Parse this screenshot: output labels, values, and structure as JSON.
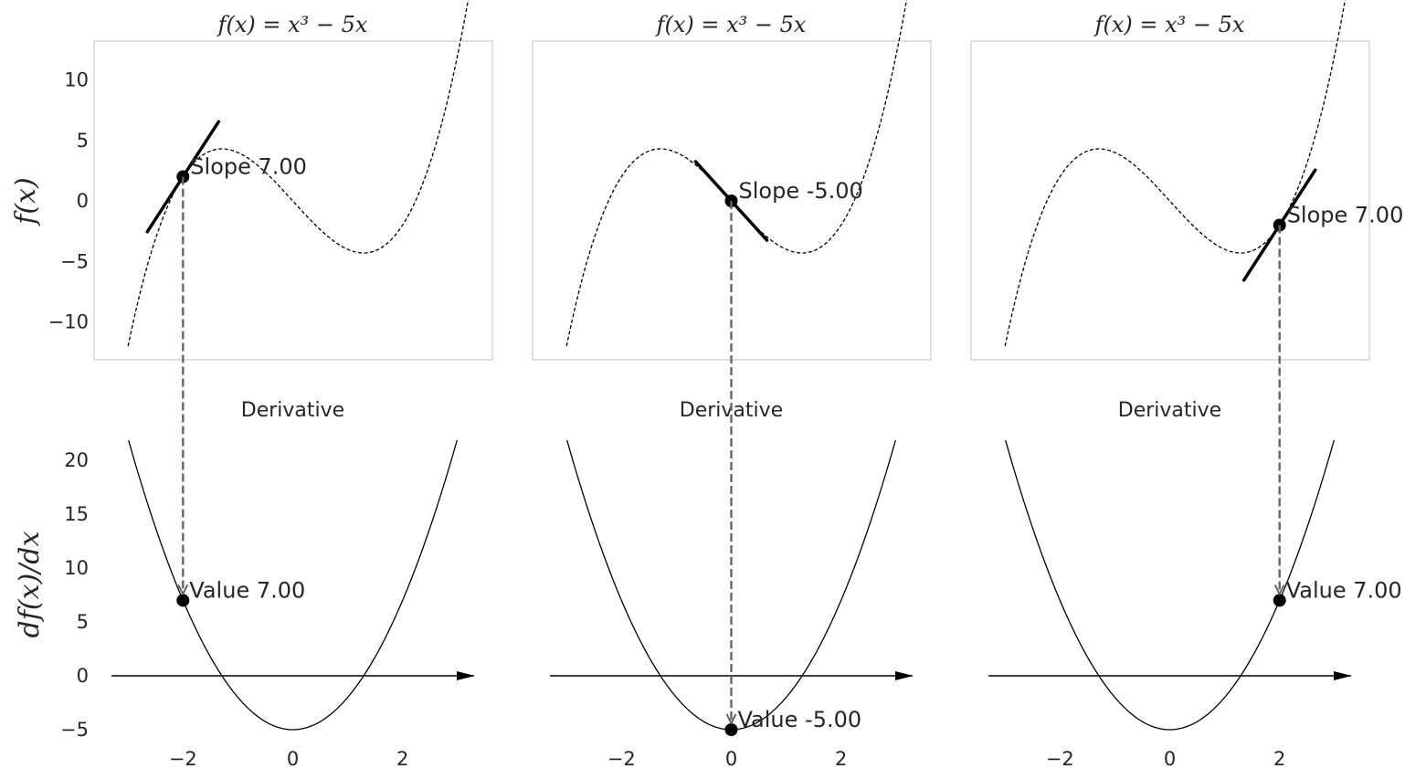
{
  "chart_data": {
    "type": "line",
    "function_expression": "x^3 - 5x",
    "derivative_expression": "3x^2 - 5",
    "x_range": [
      -3,
      3.3
    ],
    "top_row": {
      "title": "f(x) = x³ − 5x",
      "ylabel": "f(x)",
      "ylim": [
        -13.2,
        13.2
      ],
      "yticks": [
        10,
        5,
        0,
        -5,
        -10
      ],
      "ytick_labels": [
        "10",
        "5",
        "0",
        "−5",
        "−10"
      ]
    },
    "bottom_row": {
      "title": "Derivative",
      "ylabel": "df(x)/dx",
      "ylim": [
        -5.5,
        22
      ],
      "yticks": [
        20,
        15,
        10,
        5,
        0,
        -5
      ],
      "ytick_labels": [
        "20",
        "15",
        "10",
        "5",
        "0",
        "−5"
      ],
      "xticks": [
        -2,
        0,
        2
      ],
      "xtick_labels": [
        "−2",
        "0",
        "2"
      ]
    },
    "panels": [
      {
        "x0": -2,
        "f_x0": 2,
        "slope": 7,
        "slope_label": "Slope 7.00",
        "value_label": "Value 7.00"
      },
      {
        "x0": 0,
        "f_x0": 0,
        "slope": -5,
        "slope_label": "Slope -5.00",
        "value_label": "Value -5.00"
      },
      {
        "x0": 2,
        "f_x0": -2,
        "slope": 7,
        "slope_label": "Slope 7.00",
        "value_label": "Value 7.00"
      }
    ],
    "grid": false,
    "colors": {
      "curve": "#000000",
      "tangent": "#000000",
      "connector": "#666666",
      "frame": "#cccccc",
      "text": "#262626"
    }
  }
}
